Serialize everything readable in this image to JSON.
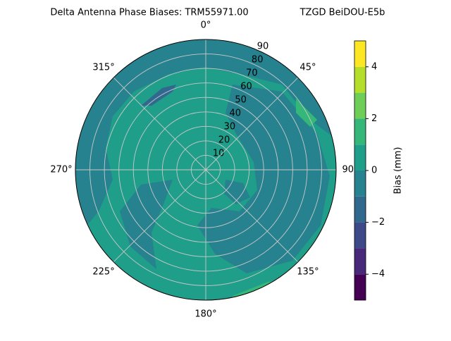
{
  "chart_data": {
    "type": "polar_contour",
    "title": "Delta Antenna Phase Biases: TRM55971.00",
    "subtitle": "TZGD BeiDOU-E5b",
    "thetaticks": [
      {
        "value": 0,
        "label": "0°"
      },
      {
        "value": 45,
        "label": "45°"
      },
      {
        "value": 90,
        "label": "90°"
      },
      {
        "value": 135,
        "label": "135°"
      },
      {
        "value": 180,
        "label": "180°"
      },
      {
        "value": 225,
        "label": "225°"
      },
      {
        "value": 270,
        "label": "270°"
      },
      {
        "value": 315,
        "label": "315°"
      }
    ],
    "rlim": [
      0,
      90
    ],
    "rticks": [
      10,
      20,
      30,
      40,
      50,
      60,
      70,
      80,
      90
    ],
    "grid": true,
    "levels": [
      -5,
      -4,
      -3,
      -2,
      -1,
      0,
      1,
      2,
      3,
      4,
      5
    ],
    "colors": [
      "#440154",
      "#482878",
      "#3e4989",
      "#31688e",
      "#26828e",
      "#1f9e89",
      "#35b779",
      "#6ece58",
      "#b5de2b",
      "#fde725"
    ],
    "colorbar_label": "Bias (mm)",
    "colorbar_lim": [
      -5,
      5
    ],
    "colorbar_ticks": [
      {
        "value": -4,
        "label": "−4"
      },
      {
        "value": -2,
        "label": "−2"
      },
      {
        "value": 0,
        "label": "0"
      },
      {
        "value": 2,
        "label": "2"
      },
      {
        "value": 4,
        "label": "4"
      }
    ]
  }
}
